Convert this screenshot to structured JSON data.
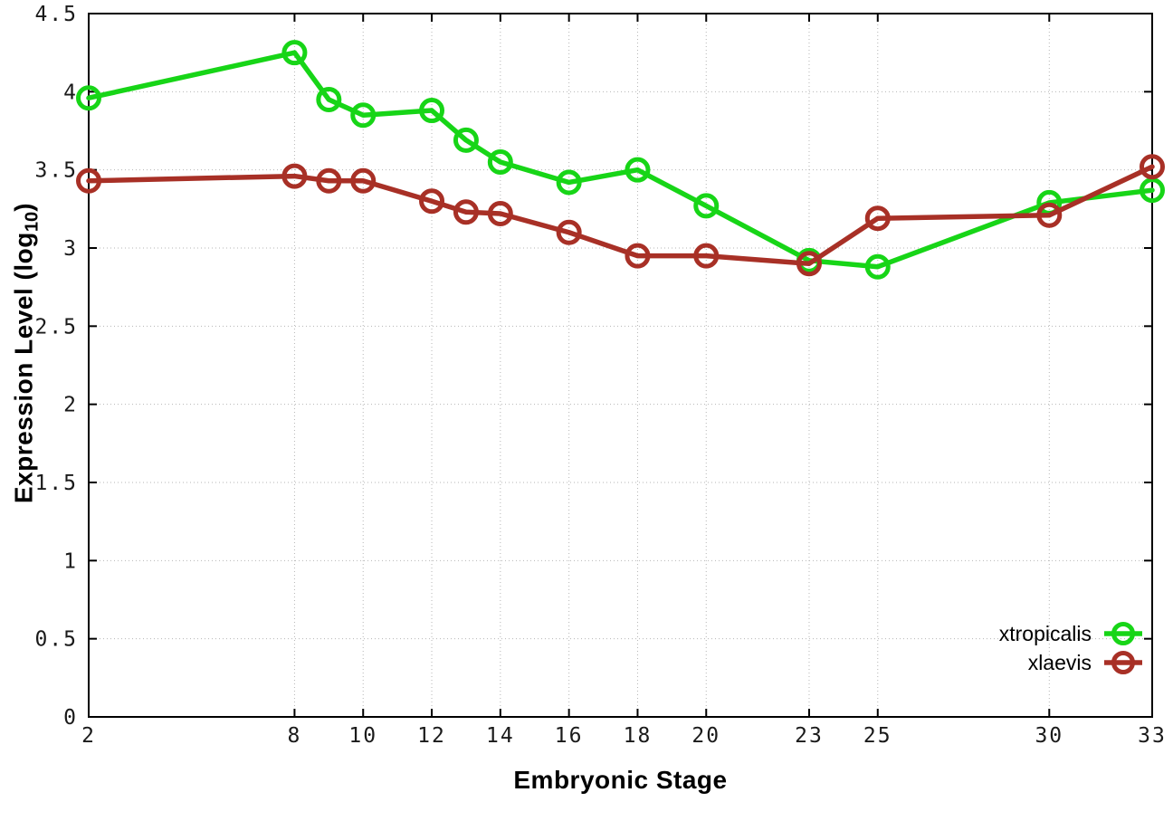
{
  "chart_data": {
    "type": "line",
    "title": "",
    "xlabel": "Embryonic Stage",
    "ylabel": "Expression Level (log10)",
    "ylabel_parts": {
      "pre": "Expression Level (log",
      "sub": "10",
      "post": ")"
    },
    "xlim": [
      2,
      33
    ],
    "ylim": [
      0,
      4.5
    ],
    "grid": true,
    "legend_position": "right-bottom",
    "x_ticks": [
      {
        "v": 2,
        "label": "2"
      },
      {
        "v": 8,
        "label": "8"
      },
      {
        "v": 10,
        "label": "10"
      },
      {
        "v": 12,
        "label": "12"
      },
      {
        "v": 14,
        "label": "14"
      },
      {
        "v": 16,
        "label": "16"
      },
      {
        "v": 18,
        "label": "18"
      },
      {
        "v": 20,
        "label": "20"
      },
      {
        "v": 23,
        "label": "23"
      },
      {
        "v": 25,
        "label": "25"
      },
      {
        "v": 30,
        "label": "30"
      },
      {
        "v": 33,
        "label": "33"
      }
    ],
    "y_ticks": [
      {
        "v": 0,
        "label": "0"
      },
      {
        "v": 0.5,
        "label": "0.5"
      },
      {
        "v": 1,
        "label": "1"
      },
      {
        "v": 1.5,
        "label": "1.5"
      },
      {
        "v": 2,
        "label": "2"
      },
      {
        "v": 2.5,
        "label": "2.5"
      },
      {
        "v": 3,
        "label": "3"
      },
      {
        "v": 3.5,
        "label": "3.5"
      },
      {
        "v": 4,
        "label": "4"
      },
      {
        "v": 4.5,
        "label": "4.5"
      }
    ],
    "x": [
      2,
      8,
      9,
      10,
      12,
      13,
      14,
      16,
      18,
      20,
      23,
      25,
      30,
      33
    ],
    "series": [
      {
        "name": "xtropicalis",
        "color": "#17d517",
        "values": [
          3.96,
          4.25,
          3.95,
          3.85,
          3.88,
          3.69,
          3.55,
          3.42,
          3.5,
          3.27,
          2.92,
          2.88,
          3.29,
          3.37
        ]
      },
      {
        "name": "xlaevis",
        "color": "#a83026",
        "values": [
          3.43,
          3.46,
          3.43,
          3.43,
          3.3,
          3.23,
          3.22,
          3.1,
          2.95,
          2.95,
          2.9,
          3.19,
          3.21,
          3.52
        ]
      }
    ],
    "style": {
      "border_color": "#000000",
      "grid_color": "#b5b5b5",
      "tick_text_color": "#1a1a1a",
      "background": "#ffffff",
      "line_width": 5.5,
      "marker_radius": 11.5,
      "marker_stroke": 5
    }
  }
}
